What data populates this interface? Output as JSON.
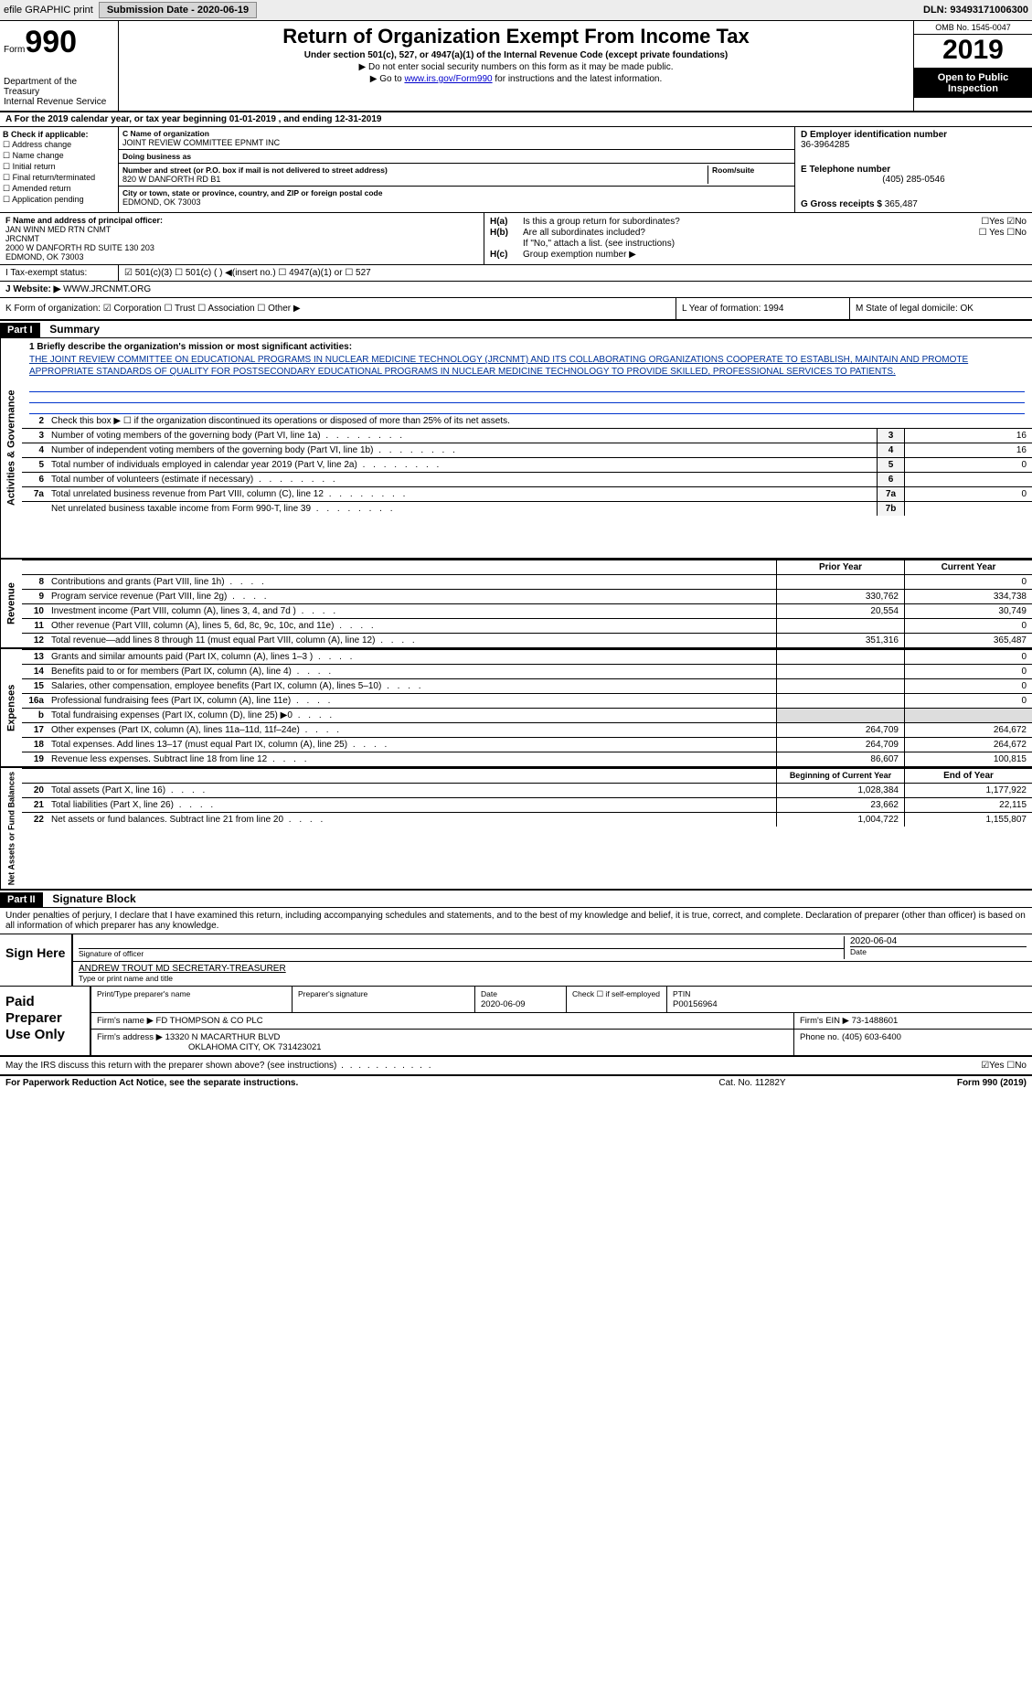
{
  "topbar": {
    "efile": "efile GRAPHIC print",
    "sub_label": "Submission Date - ",
    "sub_date": "2020-06-19",
    "dln_label": "DLN: ",
    "dln": "93493171006300"
  },
  "header": {
    "form_prefix": "Form",
    "form_num": "990",
    "dept": "Department of the Treasury\nInternal Revenue Service",
    "title": "Return of Organization Exempt From Income Tax",
    "subtitle": "Under section 501(c), 527, or 4947(a)(1) of the Internal Revenue Code (except private foundations)",
    "note1": "▶ Do not enter social security numbers on this form as it may be made public.",
    "note2_pre": "▶ Go to ",
    "note2_link": "www.irs.gov/Form990",
    "note2_post": " for instructions and the latest information.",
    "omb": "OMB No. 1545-0047",
    "year": "2019",
    "pub": "Open to Public Inspection"
  },
  "row_a": "A For the 2019 calendar year, or tax year beginning 01-01-2019    , and ending 12-31-2019",
  "col_b": {
    "label": "B Check if applicable:",
    "items": [
      "Address change",
      "Name change",
      "Initial return",
      "Final return/terminated",
      "Amended return",
      "Application pending"
    ]
  },
  "col_c": {
    "name_lbl": "C Name of organization",
    "name": "JOINT REVIEW COMMITTEE EPNMT INC",
    "dba_lbl": "Doing business as",
    "addr_lbl": "Number and street (or P.O. box if mail is not delivered to street address)",
    "addr": "820 W DANFORTH RD B1",
    "room_lbl": "Room/suite",
    "city_lbl": "City or town, state or province, country, and ZIP or foreign postal code",
    "city": "EDMOND, OK  73003"
  },
  "col_d": {
    "ein_lbl": "D Employer identification number",
    "ein": "36-3964285",
    "tel_lbl": "E Telephone number",
    "tel": "(405) 285-0546",
    "gross_lbl": "G Gross receipts $ ",
    "gross": "365,487"
  },
  "col_f": {
    "lbl": "F Name and address of principal officer:",
    "name": "JAN WINN MED RTN CNMT",
    "org": "JRCNMT",
    "addr": "2000 W DANFORTH RD SUITE 130 203",
    "city": "EDMOND, OK  73003"
  },
  "col_h": {
    "ha": "Is this a group return for subordinates?",
    "ha_ans": "☐Yes ☑No",
    "hb": "Are all subordinates included?",
    "hb_ans": "☐ Yes ☐No",
    "note": "If \"No,\" attach a list. (see instructions)",
    "hc": "Group exemption number ▶"
  },
  "sec_i": {
    "lbl": "I   Tax-exempt status:",
    "opts": "☑ 501(c)(3)   ☐ 501(c) (  ) ◀(insert no.)    ☐ 4947(a)(1) or   ☐ 527"
  },
  "sec_j": {
    "lbl": "J   Website: ▶ ",
    "val": "WWW.JRCNMT.ORG"
  },
  "sec_k": {
    "k1": "K Form of organization:  ☑ Corporation  ☐ Trust  ☐ Association  ☐ Other ▶",
    "k2": "L Year of formation: 1994",
    "k3": "M State of legal domicile: OK"
  },
  "part1": {
    "hdr": "Part I",
    "title": "Summary",
    "mission_lbl": "1  Briefly describe the organization's mission or most significant activities:",
    "mission": "THE JOINT REVIEW COMMITTEE ON EDUCATIONAL PROGRAMS IN NUCLEAR MEDICINE TECHNOLOGY (JRCNMT) AND ITS COLLABORATING ORGANIZATIONS COOPERATE TO ESTABLISH, MAINTAIN AND PROMOTE APPROPRIATE STANDARDS OF QUALITY FOR POSTSECONDARY EDUCATIONAL PROGRAMS IN NUCLEAR MEDICINE TECHNOLOGY TO PROVIDE SKILLED, PROFESSIONAL SERVICES TO PATIENTS."
  },
  "gov_lines": [
    {
      "n": "2",
      "d": "Check this box ▶ ☐  if the organization discontinued its operations or disposed of more than 25% of its net assets.",
      "box": "",
      "v": ""
    },
    {
      "n": "3",
      "d": "Number of voting members of the governing body (Part VI, line 1a)",
      "box": "3",
      "v": "16"
    },
    {
      "n": "4",
      "d": "Number of independent voting members of the governing body (Part VI, line 1b)",
      "box": "4",
      "v": "16"
    },
    {
      "n": "5",
      "d": "Total number of individuals employed in calendar year 2019 (Part V, line 2a)",
      "box": "5",
      "v": "0"
    },
    {
      "n": "6",
      "d": "Total number of volunteers (estimate if necessary)",
      "box": "6",
      "v": ""
    },
    {
      "n": "7a",
      "d": "Total unrelated business revenue from Part VIII, column (C), line 12",
      "box": "7a",
      "v": "0"
    },
    {
      "n": "",
      "d": "Net unrelated business taxable income from Form 990-T, line 39",
      "box": "7b",
      "v": ""
    }
  ],
  "rev_hdr": {
    "c1": "Prior Year",
    "c2": "Current Year"
  },
  "rev_lines": [
    {
      "n": "8",
      "d": "Contributions and grants (Part VIII, line 1h)",
      "p": "",
      "c": "0"
    },
    {
      "n": "9",
      "d": "Program service revenue (Part VIII, line 2g)",
      "p": "330,762",
      "c": "334,738"
    },
    {
      "n": "10",
      "d": "Investment income (Part VIII, column (A), lines 3, 4, and 7d )",
      "p": "20,554",
      "c": "30,749"
    },
    {
      "n": "11",
      "d": "Other revenue (Part VIII, column (A), lines 5, 6d, 8c, 9c, 10c, and 11e)",
      "p": "",
      "c": "0"
    },
    {
      "n": "12",
      "d": "Total revenue—add lines 8 through 11 (must equal Part VIII, column (A), line 12)",
      "p": "351,316",
      "c": "365,487"
    }
  ],
  "exp_lines": [
    {
      "n": "13",
      "d": "Grants and similar amounts paid (Part IX, column (A), lines 1–3 )",
      "p": "",
      "c": "0"
    },
    {
      "n": "14",
      "d": "Benefits paid to or for members (Part IX, column (A), line 4)",
      "p": "",
      "c": "0"
    },
    {
      "n": "15",
      "d": "Salaries, other compensation, employee benefits (Part IX, column (A), lines 5–10)",
      "p": "",
      "c": "0"
    },
    {
      "n": "16a",
      "d": "Professional fundraising fees (Part IX, column (A), line 11e)",
      "p": "",
      "c": "0"
    },
    {
      "n": "b",
      "d": "Total fundraising expenses (Part IX, column (D), line 25) ▶0",
      "p": "—",
      "c": "—"
    },
    {
      "n": "17",
      "d": "Other expenses (Part IX, column (A), lines 11a–11d, 11f–24e)",
      "p": "264,709",
      "c": "264,672"
    },
    {
      "n": "18",
      "d": "Total expenses. Add lines 13–17 (must equal Part IX, column (A), line 25)",
      "p": "264,709",
      "c": "264,672"
    },
    {
      "n": "19",
      "d": "Revenue less expenses. Subtract line 18 from line 12",
      "p": "86,607",
      "c": "100,815"
    }
  ],
  "na_hdr": {
    "c1": "Beginning of Current Year",
    "c2": "End of Year"
  },
  "na_lines": [
    {
      "n": "20",
      "d": "Total assets (Part X, line 16)",
      "p": "1,028,384",
      "c": "1,177,922"
    },
    {
      "n": "21",
      "d": "Total liabilities (Part X, line 26)",
      "p": "23,662",
      "c": "22,115"
    },
    {
      "n": "22",
      "d": "Net assets or fund balances. Subtract line 21 from line 20",
      "p": "1,004,722",
      "c": "1,155,807"
    }
  ],
  "part2": {
    "hdr": "Part II",
    "title": "Signature Block",
    "intro": "Under penalties of perjury, I declare that I have examined this return, including accompanying schedules and statements, and to the best of my knowledge and belief, it is true, correct, and complete. Declaration of preparer (other than officer) is based on all information of which preparer has any knowledge."
  },
  "sign": {
    "lbl": "Sign Here",
    "sig_lbl": "Signature of officer",
    "date": "2020-06-04",
    "date_lbl": "Date",
    "name": "ANDREW TROUT MD  SECRETARY-TREASURER",
    "name_lbl": "Type or print name and title"
  },
  "prep": {
    "lbl": "Paid Preparer Use Only",
    "h1": "Print/Type preparer's name",
    "h2": "Preparer's signature",
    "h3_lbl": "Date",
    "h3": "2020-06-09",
    "h4": "Check ☐ if self-employed",
    "h5_lbl": "PTIN",
    "h5": "P00156964",
    "firm_lbl": "Firm's name   ▶ ",
    "firm": "FD THOMPSON & CO PLC",
    "ein_lbl": "Firm's EIN ▶ ",
    "ein": "73-1488601",
    "addr_lbl": "Firm's address ▶ ",
    "addr1": "13320 N MACARTHUR BLVD",
    "addr2": "OKLAHOMA CITY, OK  731423021",
    "ph_lbl": "Phone no. ",
    "ph": "(405) 603-6400"
  },
  "footer": {
    "q": "May the IRS discuss this return with the preparer shown above? (see instructions)",
    "ans": "☑Yes  ☐No",
    "pra": "For Paperwork Reduction Act Notice, see the separate instructions.",
    "cat": "Cat. No. 11282Y",
    "form": "Form 990 (2019)"
  },
  "vlabels": {
    "gov": "Activities & Governance",
    "rev": "Revenue",
    "exp": "Expenses",
    "na": "Net Assets or Fund Balances"
  }
}
